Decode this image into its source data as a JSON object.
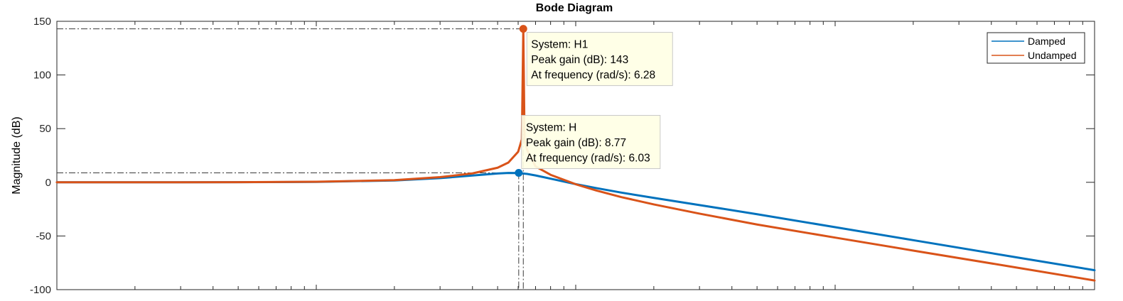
{
  "chart_data": {
    "type": "line",
    "title": "Bode Diagram",
    "xlabel": "",
    "ylabel": "Magnitude (dB)",
    "xscale": "log",
    "xlim": [
      0.1,
      1000
    ],
    "ylim": [
      -100,
      150
    ],
    "yticks": [
      150,
      100,
      50,
      0,
      -50,
      -100
    ],
    "ytick_labels": [
      "150",
      "100",
      "50",
      "0",
      "-50",
      "-100"
    ],
    "grid": false,
    "legend": {
      "placement": "top-right",
      "entries": [
        "Damped",
        "Undamped"
      ]
    },
    "series": [
      {
        "name": "Damped",
        "color": "#0072BD",
        "x": [
          0.1,
          0.5,
          1,
          2,
          3,
          4,
          5,
          5.5,
          6,
          6.5,
          7,
          8,
          10,
          12,
          15,
          20,
          30,
          50,
          100,
          200,
          500,
          1000
        ],
        "y": [
          0.0,
          0.1,
          0.4,
          1.7,
          3.9,
          6.3,
          8.2,
          8.7,
          8.6,
          7.8,
          6.4,
          3.4,
          -1.7,
          -5.4,
          -9.6,
          -14.5,
          -21.2,
          -29.7,
          -41.8,
          -53.9,
          -69.9,
          -81.9
        ]
      },
      {
        "name": "Undamped",
        "color": "#D95319",
        "x": [
          0.1,
          0.5,
          1,
          2,
          3,
          4,
          5,
          5.5,
          6,
          6.2,
          6.28,
          6.35,
          6.5,
          7,
          8,
          10,
          12,
          15,
          20,
          30,
          50,
          100,
          200,
          500,
          1000
        ],
        "y": [
          0.0,
          0.1,
          0.5,
          2.0,
          4.8,
          8.3,
          13.6,
          18.4,
          28.5,
          40.0,
          143,
          40.0,
          30.0,
          14.8,
          7.0,
          -1.8,
          -7.6,
          -13.8,
          -20.6,
          -29.2,
          -39.3,
          -51.5,
          -63.6,
          -79.4,
          -91.5
        ]
      }
    ],
    "datatips": [
      {
        "series": "Undamped",
        "x": 6.28,
        "y": 143,
        "lines": [
          "System: H1",
          "Peak gain (dB): 143",
          "At frequency (rad/s): 6.28"
        ]
      },
      {
        "series": "Damped",
        "x": 6.03,
        "y": 8.77,
        "lines": [
          "System: H",
          "Peak gain (dB): 8.77",
          "At frequency (rad/s): 6.03"
        ]
      }
    ]
  }
}
